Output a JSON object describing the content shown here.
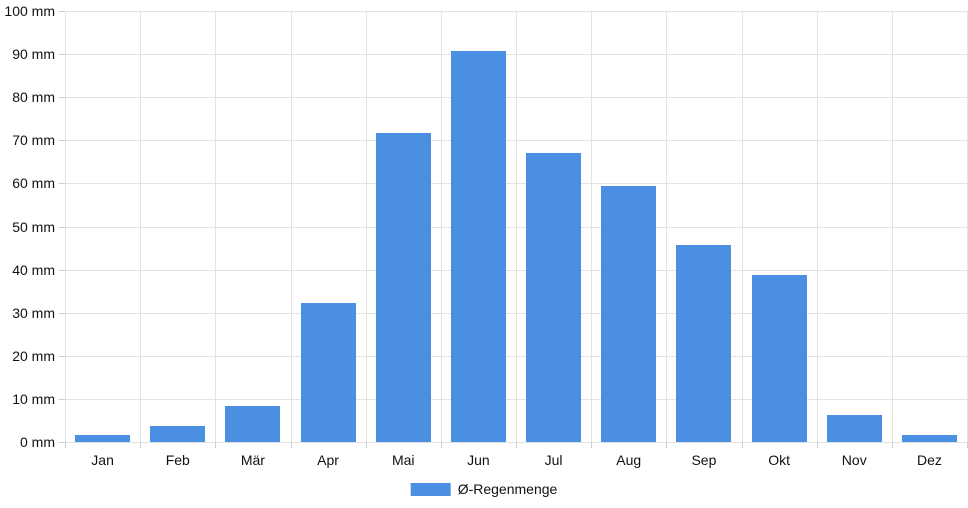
{
  "chart_data": {
    "type": "bar",
    "title": "",
    "xlabel": "",
    "ylabel": "",
    "categories": [
      "Jan",
      "Feb",
      "Mär",
      "Apr",
      "Mai",
      "Jun",
      "Jul",
      "Aug",
      "Sep",
      "Okt",
      "Nov",
      "Dez"
    ],
    "values": [
      1.7,
      3.7,
      8.4,
      32.3,
      71.6,
      90.7,
      67.0,
      59.4,
      45.6,
      38.7,
      6.2,
      1.6
    ],
    "series_name": "Ø-Regenmenge",
    "y_unit": "mm",
    "y_ticks": [
      "0 mm",
      "10 mm",
      "20 mm",
      "30 mm",
      "40 mm",
      "50 mm",
      "60 mm",
      "70 mm",
      "80 mm",
      "90 mm",
      "100 mm"
    ],
    "ylim": [
      0,
      100
    ],
    "y_step": 10,
    "grid": true,
    "legend_position": "bottom",
    "colors": {
      "bar": "#4a8fe2",
      "grid": "#e3e3e3",
      "tick": "#cccccc",
      "text": "#111111",
      "background": "#ffffff"
    }
  },
  "legend": {
    "label": "Ø-Regenmenge"
  }
}
